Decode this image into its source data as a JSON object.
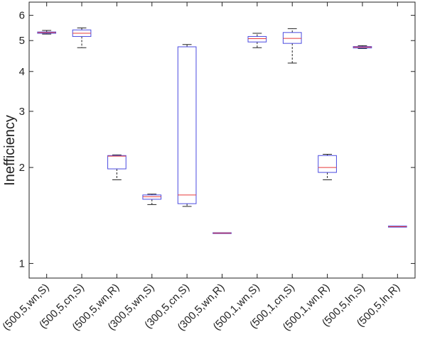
{
  "chart_data": {
    "type": "box",
    "title": "",
    "xlabel": "",
    "ylabel": "Inefficiency",
    "yscale": "log",
    "ylim": [
      0.9,
      6.6
    ],
    "yticks": [
      1,
      2,
      3,
      4,
      5,
      6
    ],
    "ytick_labels": [
      "1",
      "2",
      "3",
      "4",
      "5",
      "6"
    ],
    "grid": false,
    "box_edge_color": "#4a4ae0",
    "median_color": "#e83a3a",
    "whisker_color": "#222222",
    "categories": [
      "(500,5,wn,S)",
      "(500,5,cn,S)",
      "(500,5,wn,R)",
      "(300,5,wn,S)",
      "(300,5,cn,S)",
      "(300,5,wn,R)",
      "(500,1,wn,S)",
      "(500,1,cn,S)",
      "(500,1,wn,R)",
      "(500,5,ln,S)",
      "(500,5,ln,R)"
    ],
    "boxes": [
      {
        "whisker_low": 5.24,
        "q1": 5.27,
        "median": 5.3,
        "q3": 5.32,
        "whisker_high": 5.38
      },
      {
        "whisker_low": 4.75,
        "q1": 5.15,
        "median": 5.27,
        "q3": 5.4,
        "whisker_high": 5.48
      },
      {
        "whisker_low": 1.83,
        "q1": 1.98,
        "median": 2.17,
        "q3": 2.18,
        "whisker_high": 2.19
      },
      {
        "whisker_low": 1.53,
        "q1": 1.59,
        "median": 1.62,
        "q3": 1.64,
        "whisker_high": 1.65
      },
      {
        "whisker_low": 1.51,
        "q1": 1.54,
        "median": 1.64,
        "q3": 4.78,
        "whisker_high": 4.86
      },
      {
        "whisker_low": 1.245,
        "q1": 1.245,
        "median": 1.245,
        "q3": 1.245,
        "whisker_high": 1.245
      },
      {
        "whisker_low": 4.75,
        "q1": 4.95,
        "median": 5.07,
        "q3": 5.15,
        "whisker_high": 5.27
      },
      {
        "whisker_low": 4.25,
        "q1": 4.9,
        "median": 5.08,
        "q3": 5.3,
        "whisker_high": 5.45
      },
      {
        "whisker_low": 1.83,
        "q1": 1.93,
        "median": 2.0,
        "q3": 2.18,
        "whisker_high": 2.2
      },
      {
        "whisker_low": 4.72,
        "q1": 4.74,
        "median": 4.77,
        "q3": 4.79,
        "whisker_high": 4.82
      },
      {
        "whisker_low": 1.3,
        "q1": 1.3,
        "median": 1.305,
        "q3": 1.31,
        "whisker_high": 1.31
      }
    ]
  }
}
